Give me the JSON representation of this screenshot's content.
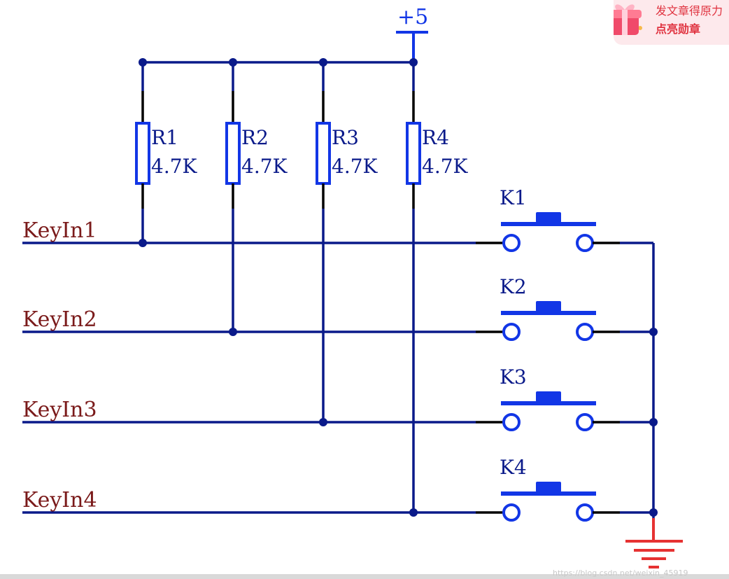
{
  "supply": {
    "label": "+5"
  },
  "resistors": [
    {
      "ref": "R1",
      "value": "4.7K"
    },
    {
      "ref": "R2",
      "value": "4.7K"
    },
    {
      "ref": "R3",
      "value": "4.7K"
    },
    {
      "ref": "R4",
      "value": "4.7K"
    }
  ],
  "inputs": [
    "KeyIn1",
    "KeyIn2",
    "KeyIn3",
    "KeyIn4"
  ],
  "keys": [
    "K1",
    "K2",
    "K3",
    "K4"
  ],
  "badge": {
    "line1": "发文章得原力",
    "line2": "点亮勋章"
  },
  "watermark": "https://blog.csdn.net/weixin_45919",
  "colors": {
    "wire": "#0a1a8a",
    "switch": "#1236e6",
    "ground": "#e63232",
    "label_input": "#7a1a1a",
    "label_comp": "#0a1a8a"
  }
}
